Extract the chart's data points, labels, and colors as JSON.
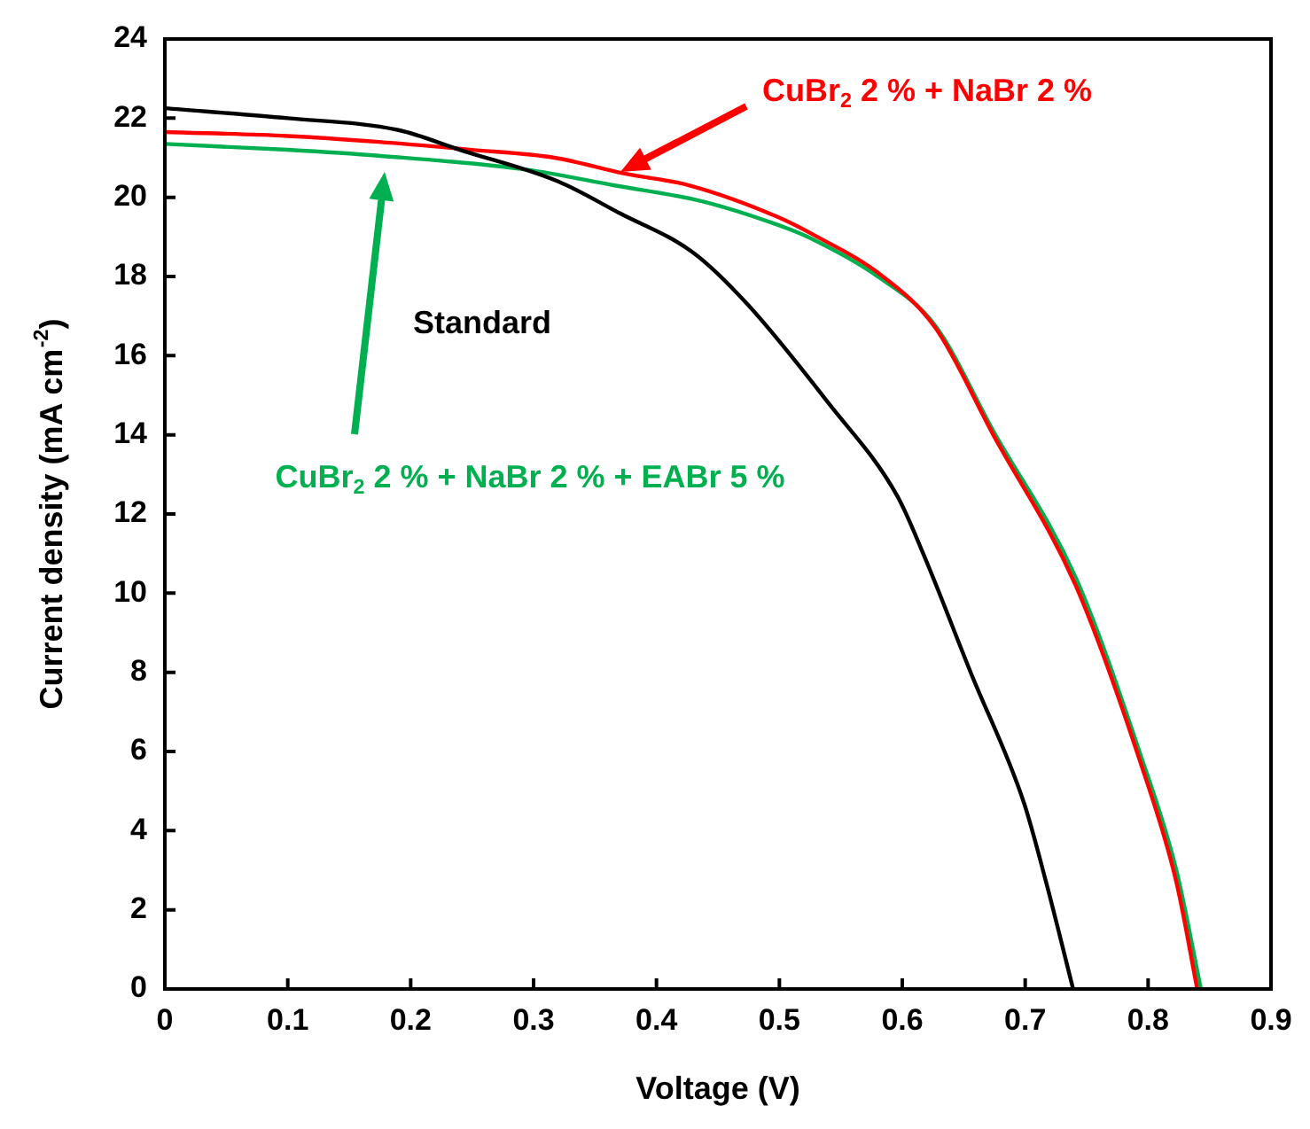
{
  "chart_data": {
    "type": "line",
    "xlabel": "Voltage (V)",
    "ylabel": "Current density (mA cm$^{-2}$)",
    "xlim": [
      0,
      0.9
    ],
    "xticks": [
      0,
      0.1,
      0.2,
      0.3,
      0.4,
      0.5,
      0.6,
      0.7,
      0.8,
      0.9
    ],
    "ylim": [
      0,
      24
    ],
    "yticks": [
      0,
      2,
      4,
      6,
      8,
      10,
      12,
      14,
      16,
      18,
      20,
      22,
      24
    ],
    "grid": false,
    "legend": false,
    "marker": "none",
    "line_style": "solid",
    "series": [
      {
        "name": "Standard",
        "color": "#000000",
        "x": [
          0,
          0.1,
          0.19,
          0.24,
          0.32,
          0.37,
          0.43,
          0.474,
          0.54,
          0.596,
          0.617,
          0.656,
          0.699,
          0.717,
          0.739
        ],
        "values": [
          22.25,
          22.0,
          21.7,
          21.2,
          20.4,
          19.6,
          18.6,
          17.3,
          14.8,
          12.45,
          11.0,
          7.97,
          4.7,
          2.7,
          0
        ]
      },
      {
        "name": "CuBr$_{2}$ 2 % + NaBr 2 %",
        "color": "#ff0000",
        "x": [
          0,
          0.1,
          0.174,
          0.25,
          0.317,
          0.374,
          0.427,
          0.499,
          0.531,
          0.58,
          0.627,
          0.674,
          0.741,
          0.794,
          0.823,
          0.84
        ],
        "values": [
          21.65,
          21.55,
          21.4,
          21.2,
          21.0,
          20.6,
          20.3,
          19.5,
          19.0,
          18.1,
          16.7,
          14.0,
          10.2,
          5.7,
          2.7,
          0
        ]
      },
      {
        "name": "CuBr$_{2}$ 2 % + NaBr 2 % + EABr 5 %",
        "color": "#00b050",
        "x": [
          0,
          0.1,
          0.174,
          0.294,
          0.366,
          0.437,
          0.499,
          0.523,
          0.58,
          0.627,
          0.674,
          0.741,
          0.794,
          0.823,
          0.843
        ],
        "values": [
          21.35,
          21.2,
          21.05,
          20.7,
          20.3,
          19.9,
          19.3,
          19.0,
          18.0,
          16.75,
          14.1,
          10.4,
          5.9,
          3.0,
          0
        ]
      }
    ]
  }
}
